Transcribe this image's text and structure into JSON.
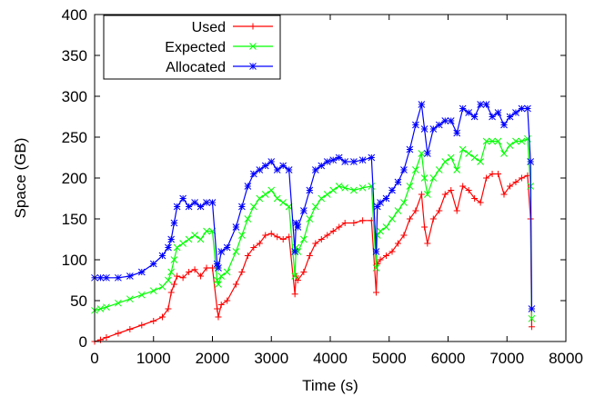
{
  "chart_data": {
    "type": "line",
    "title": "",
    "xlabel": "Time (s)",
    "ylabel": "Space (GB)",
    "xlim": [
      0,
      8000
    ],
    "ylim": [
      0,
      400
    ],
    "xticks": [
      0,
      1000,
      2000,
      3000,
      4000,
      5000,
      6000,
      7000,
      8000
    ],
    "yticks": [
      0,
      50,
      100,
      150,
      200,
      250,
      300,
      350,
      400
    ],
    "grid": false,
    "legend_position": "top-left",
    "series": [
      {
        "name": "Used",
        "color": "#ff0000",
        "marker": "plus",
        "x": [
          0,
          100,
          200,
          400,
          600,
          800,
          1000,
          1150,
          1250,
          1300,
          1350,
          1400,
          1500,
          1600,
          1700,
          1800,
          1900,
          2000,
          2080,
          2100,
          2150,
          2250,
          2400,
          2500,
          2600,
          2700,
          2800,
          2900,
          3000,
          3100,
          3200,
          3300,
          3400,
          3420,
          3450,
          3550,
          3650,
          3750,
          3850,
          3950,
          4050,
          4150,
          4250,
          4400,
          4550,
          4700,
          4780,
          4800,
          4850,
          4950,
          5050,
          5150,
          5250,
          5350,
          5450,
          5550,
          5600,
          5650,
          5750,
          5850,
          5950,
          6050,
          6150,
          6250,
          6350,
          6450,
          6550,
          6650,
          6750,
          6850,
          6950,
          7050,
          7150,
          7250,
          7350,
          7400,
          7420
        ],
        "y": [
          0,
          2,
          5,
          10,
          15,
          20,
          25,
          30,
          40,
          60,
          70,
          80,
          78,
          85,
          88,
          80,
          90,
          90,
          40,
          30,
          45,
          50,
          70,
          85,
          105,
          115,
          120,
          130,
          132,
          128,
          125,
          128,
          58,
          80,
          75,
          85,
          105,
          120,
          125,
          130,
          135,
          140,
          145,
          145,
          148,
          148,
          60,
          95,
          100,
          105,
          110,
          120,
          130,
          150,
          160,
          180,
          140,
          120,
          150,
          160,
          180,
          185,
          160,
          190,
          185,
          175,
          170,
          200,
          205,
          205,
          180,
          190,
          195,
          200,
          203,
          150,
          18
        ]
      },
      {
        "name": "Expected",
        "color": "#00ff00",
        "marker": "cross",
        "x": [
          0,
          100,
          200,
          400,
          600,
          800,
          1000,
          1150,
          1250,
          1300,
          1350,
          1400,
          1500,
          1600,
          1700,
          1800,
          1900,
          2000,
          2080,
          2100,
          2150,
          2250,
          2400,
          2500,
          2600,
          2700,
          2800,
          2900,
          3000,
          3100,
          3200,
          3300,
          3400,
          3420,
          3450,
          3550,
          3650,
          3750,
          3850,
          3950,
          4050,
          4150,
          4250,
          4400,
          4550,
          4700,
          4780,
          4800,
          4850,
          4950,
          5050,
          5150,
          5250,
          5350,
          5450,
          5550,
          5600,
          5650,
          5750,
          5850,
          5950,
          6050,
          6150,
          6250,
          6350,
          6450,
          6550,
          6650,
          6750,
          6850,
          6950,
          7050,
          7150,
          7250,
          7350,
          7400,
          7420
        ],
        "y": [
          38,
          40,
          42,
          47,
          52,
          57,
          62,
          67,
          75,
          85,
          100,
          115,
          120,
          125,
          130,
          125,
          135,
          135,
          75,
          70,
          80,
          85,
          110,
          130,
          150,
          165,
          175,
          180,
          185,
          175,
          170,
          165,
          80,
          115,
          110,
          125,
          150,
          165,
          175,
          180,
          185,
          190,
          188,
          185,
          188,
          190,
          90,
          130,
          135,
          140,
          150,
          160,
          170,
          190,
          210,
          230,
          200,
          180,
          200,
          210,
          220,
          225,
          210,
          235,
          230,
          225,
          220,
          245,
          245,
          245,
          230,
          240,
          245,
          245,
          248,
          190,
          28
        ]
      },
      {
        "name": "Allocated",
        "color": "#0000ff",
        "marker": "star",
        "x": [
          0,
          100,
          200,
          400,
          600,
          800,
          1000,
          1150,
          1250,
          1300,
          1350,
          1400,
          1500,
          1600,
          1700,
          1800,
          1900,
          2000,
          2080,
          2100,
          2150,
          2250,
          2400,
          2500,
          2600,
          2700,
          2800,
          2900,
          3000,
          3100,
          3200,
          3300,
          3400,
          3420,
          3450,
          3550,
          3650,
          3750,
          3850,
          3950,
          4050,
          4150,
          4250,
          4400,
          4550,
          4700,
          4780,
          4800,
          4850,
          4950,
          5050,
          5150,
          5250,
          5350,
          5450,
          5550,
          5600,
          5650,
          5750,
          5850,
          5950,
          6050,
          6150,
          6250,
          6350,
          6450,
          6550,
          6650,
          6750,
          6850,
          6950,
          7050,
          7150,
          7250,
          7350,
          7400,
          7420
        ],
        "y": [
          78,
          78,
          78,
          78,
          80,
          85,
          95,
          105,
          115,
          125,
          145,
          165,
          175,
          165,
          170,
          165,
          170,
          170,
          95,
          90,
          110,
          115,
          140,
          165,
          190,
          205,
          210,
          215,
          220,
          210,
          215,
          210,
          110,
          145,
          140,
          160,
          185,
          210,
          215,
          220,
          222,
          225,
          220,
          220,
          222,
          225,
          110,
          165,
          170,
          175,
          185,
          195,
          210,
          235,
          265,
          290,
          260,
          230,
          260,
          265,
          270,
          270,
          255,
          285,
          280,
          275,
          290,
          290,
          275,
          280,
          265,
          275,
          280,
          285,
          285,
          220,
          40
        ]
      }
    ]
  }
}
